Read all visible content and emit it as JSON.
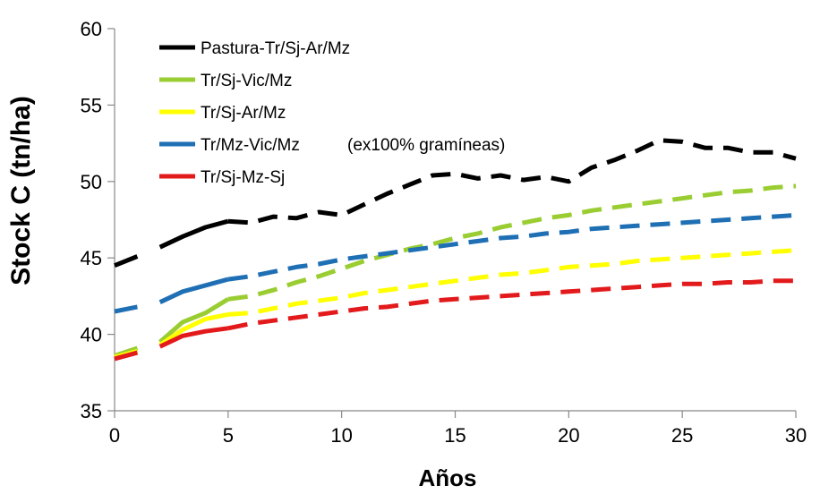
{
  "chart_data": {
    "type": "line",
    "title": "",
    "xlabel": "Años",
    "ylabel": "Stock C (tn/ha)",
    "xlim": [
      0,
      30
    ],
    "ylim": [
      35,
      60
    ],
    "x_ticks": [
      0,
      5,
      10,
      15,
      20,
      25,
      30
    ],
    "y_ticks": [
      35,
      40,
      45,
      50,
      55,
      60
    ],
    "grid": false,
    "legend_note": "(ex100% gramíneas)",
    "series": [
      {
        "name": "Pastura-Tr/Sj-Ar/Mz",
        "color": "#000000",
        "x": [
          0,
          1,
          2,
          3,
          4,
          5,
          6,
          7,
          8,
          9,
          10,
          11,
          12,
          13,
          14,
          15,
          16,
          17,
          18,
          19,
          20,
          21,
          22,
          23,
          24,
          25,
          26,
          27,
          28,
          29,
          30
        ],
        "values": [
          44.5,
          45.1,
          45.7,
          46.4,
          47.0,
          47.4,
          47.3,
          47.7,
          47.6,
          48.0,
          47.8,
          48.5,
          49.2,
          49.8,
          50.4,
          50.5,
          50.2,
          50.4,
          50.1,
          50.3,
          50.0,
          50.9,
          51.4,
          52.0,
          52.7,
          52.6,
          52.2,
          52.2,
          51.9,
          51.9,
          51.5
        ]
      },
      {
        "name": "Tr/Sj-Vic/Mz",
        "color": "#9ACD32",
        "x": [
          0,
          1,
          2,
          3,
          4,
          5,
          6,
          7,
          8,
          9,
          10,
          11,
          12,
          13,
          14,
          15,
          16,
          17,
          18,
          19,
          20,
          21,
          22,
          23,
          24,
          25,
          26,
          27,
          28,
          29,
          30
        ],
        "values": [
          38.6,
          39.1,
          39.5,
          40.8,
          41.4,
          42.3,
          42.5,
          42.9,
          43.4,
          43.8,
          44.3,
          44.8,
          45.2,
          45.6,
          45.9,
          46.3,
          46.6,
          47.0,
          47.3,
          47.6,
          47.8,
          48.1,
          48.3,
          48.5,
          48.7,
          48.9,
          49.1,
          49.3,
          49.4,
          49.6,
          49.7
        ]
      },
      {
        "name": "Tr/Sj-Ar/Mz",
        "color": "#FFFF00",
        "x": [
          0,
          1,
          2,
          3,
          4,
          5,
          6,
          7,
          8,
          9,
          10,
          11,
          12,
          13,
          14,
          15,
          16,
          17,
          18,
          19,
          20,
          21,
          22,
          23,
          24,
          25,
          26,
          27,
          28,
          29,
          30
        ],
        "values": [
          38.5,
          38.9,
          39.3,
          40.3,
          41.0,
          41.3,
          41.4,
          41.7,
          42.0,
          42.2,
          42.4,
          42.7,
          42.9,
          43.1,
          43.3,
          43.5,
          43.7,
          43.9,
          44.0,
          44.2,
          44.4,
          44.5,
          44.6,
          44.8,
          44.9,
          45.0,
          45.1,
          45.2,
          45.3,
          45.4,
          45.5
        ]
      },
      {
        "name": "Tr/Mz-Vic/Mz",
        "color": "#1F6FB4",
        "x": [
          0,
          1,
          2,
          3,
          4,
          5,
          6,
          7,
          8,
          9,
          10,
          11,
          12,
          13,
          14,
          15,
          16,
          17,
          18,
          19,
          20,
          21,
          22,
          23,
          24,
          25,
          26,
          27,
          28,
          29,
          30
        ],
        "values": [
          41.5,
          41.8,
          42.1,
          42.8,
          43.2,
          43.6,
          43.8,
          44.1,
          44.4,
          44.6,
          44.9,
          45.1,
          45.3,
          45.5,
          45.7,
          45.9,
          46.1,
          46.3,
          46.4,
          46.6,
          46.7,
          46.9,
          47.0,
          47.1,
          47.2,
          47.3,
          47.4,
          47.5,
          47.6,
          47.7,
          47.8
        ]
      },
      {
        "name": "Tr/Sj-Mz-Sj",
        "color": "#E31A1C",
        "x": [
          0,
          1,
          2,
          3,
          4,
          5,
          6,
          7,
          8,
          9,
          10,
          11,
          12,
          13,
          14,
          15,
          16,
          17,
          18,
          19,
          20,
          21,
          22,
          23,
          24,
          25,
          26,
          27,
          28,
          29,
          30
        ],
        "values": [
          38.4,
          38.8,
          39.2,
          39.9,
          40.2,
          40.4,
          40.7,
          40.9,
          41.1,
          41.3,
          41.5,
          41.7,
          41.8,
          42.0,
          42.2,
          42.3,
          42.4,
          42.5,
          42.6,
          42.7,
          42.8,
          42.9,
          43.0,
          43.1,
          43.2,
          43.3,
          43.3,
          43.4,
          43.4,
          43.5,
          43.5
        ]
      }
    ]
  }
}
